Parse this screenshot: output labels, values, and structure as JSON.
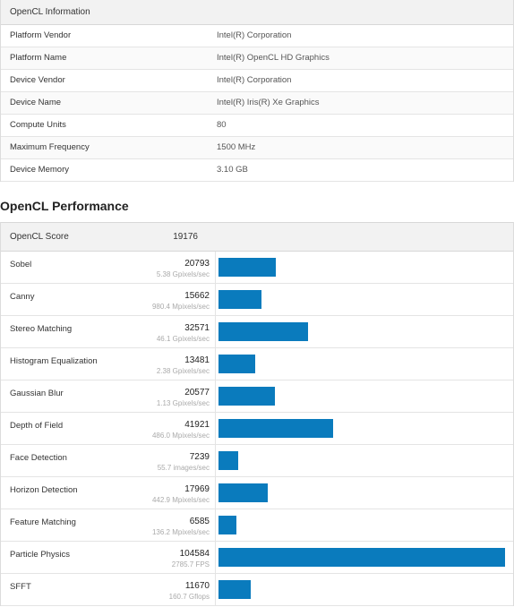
{
  "info": {
    "title": "OpenCL Information",
    "rows": [
      {
        "label": "Platform Vendor",
        "value": "Intel(R) Corporation"
      },
      {
        "label": "Platform Name",
        "value": "Intel(R) OpenCL HD Graphics"
      },
      {
        "label": "Device Vendor",
        "value": "Intel(R) Corporation"
      },
      {
        "label": "Device Name",
        "value": "Intel(R) Iris(R) Xe Graphics"
      },
      {
        "label": "Compute Units",
        "value": "80"
      },
      {
        "label": "Maximum Frequency",
        "value": "1500 MHz"
      },
      {
        "label": "Device Memory",
        "value": "3.10 GB"
      }
    ]
  },
  "performance": {
    "title": "OpenCL Performance",
    "score_label": "OpenCL Score",
    "score_value": "19176",
    "bar_color": "#0a7bbd",
    "max_score": 104584,
    "rows": [
      {
        "name": "Sobel",
        "score": 20793,
        "sub": "5.38 Gpixels/sec"
      },
      {
        "name": "Canny",
        "score": 15662,
        "sub": "980.4 Mpixels/sec"
      },
      {
        "name": "Stereo Matching",
        "score": 32571,
        "sub": "46.1 Gpixels/sec"
      },
      {
        "name": "Histogram Equalization",
        "score": 13481,
        "sub": "2.38 Gpixels/sec"
      },
      {
        "name": "Gaussian Blur",
        "score": 20577,
        "sub": "1.13 Gpixels/sec"
      },
      {
        "name": "Depth of Field",
        "score": 41921,
        "sub": "486.0 Mpixels/sec"
      },
      {
        "name": "Face Detection",
        "score": 7239,
        "sub": "55.7 images/sec"
      },
      {
        "name": "Horizon Detection",
        "score": 17969,
        "sub": "442.9 Mpixels/sec"
      },
      {
        "name": "Feature Matching",
        "score": 6585,
        "sub": "136.2 Mpixels/sec"
      },
      {
        "name": "Particle Physics",
        "score": 104584,
        "sub": "2785.7 FPS"
      },
      {
        "name": "SFFT",
        "score": 11670,
        "sub": "160.7 Gflops"
      }
    ]
  }
}
